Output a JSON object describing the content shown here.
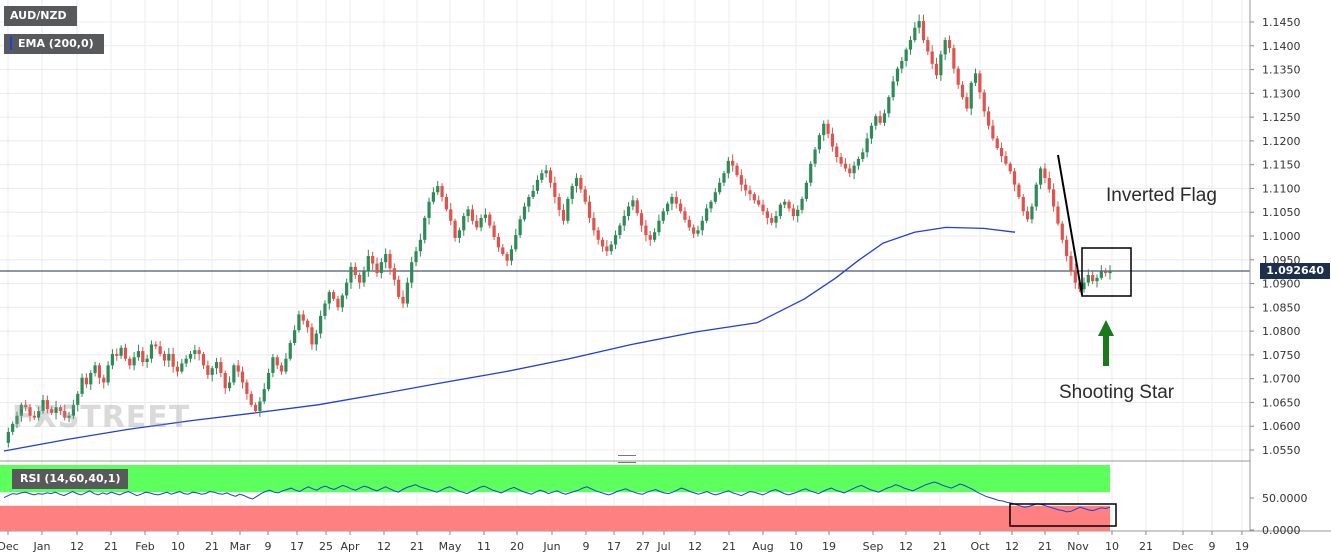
{
  "symbol_label": "AUD/NZD",
  "indicator_label": "EMA (200,0)",
  "rsi_label": "RSI (14,60,40,1)",
  "current_price_label": "1.092640",
  "watermark": "FXSTREET",
  "annotations": {
    "inverted_flag": "Inverted Flag",
    "shooting_star": "Shooting Star"
  },
  "colors": {
    "bull": "#2e8b57",
    "bear": "#e0524b",
    "ema": "#1f3fd6",
    "rsi_line": "#1f3fd6",
    "rsi_upper_zone": "#5dff5d",
    "rsi_lower_zone": "#ff8080",
    "price_line": "#1e2f4e",
    "arrow": "#1a7a1a",
    "ema_tag_bar": "#1f3fd6"
  },
  "chart_data": {
    "type": "candlestick",
    "title": "AUD/NZD",
    "y_ticks": [
      "1.1450",
      "1.1400",
      "1.1350",
      "1.1300",
      "1.1250",
      "1.1200",
      "1.1150",
      "1.1100",
      "1.1050",
      "1.1000",
      "1.0950",
      "1.0900",
      "1.0850",
      "1.0800",
      "1.0750",
      "1.0700",
      "1.0650",
      "1.0600",
      "1.0550"
    ],
    "ylim": [
      1.0545,
      1.1485
    ],
    "x_ticks": [
      "Dec",
      "Jan",
      "12",
      "21",
      "Feb",
      "10",
      "21",
      "Mar",
      "9",
      "17",
      "25",
      "Apr",
      "12",
      "21",
      "May",
      "11",
      "20",
      "Jun",
      "9",
      "17",
      "27",
      "Jul",
      "12",
      "21",
      "Aug",
      "10",
      "19",
      "Sep",
      "12",
      "21",
      "Oct",
      "12",
      "21",
      "Nov",
      "10",
      "21",
      "Dec",
      "9",
      "19"
    ],
    "current_price": 1.09264,
    "price_path": [
      1.0565,
      1.0588,
      1.0605,
      1.0622,
      1.0645,
      1.064,
      1.0622,
      1.0618,
      1.0632,
      1.0655,
      1.0636,
      1.0628,
      1.064,
      1.0632,
      1.0618,
      1.0622,
      1.0645,
      1.0668,
      1.0702,
      1.0688,
      1.0712,
      1.0728,
      1.0702,
      1.0692,
      1.0728,
      1.0752,
      1.0748,
      1.0765,
      1.0742,
      1.0728,
      1.0745,
      1.0758,
      1.0735,
      1.0742,
      1.0772,
      1.0768,
      1.0752,
      1.0738,
      1.0752,
      1.0725,
      1.0715,
      1.0732,
      1.0742,
      1.0752,
      1.076,
      1.0752,
      1.0728,
      1.0708,
      1.0722,
      1.0735,
      1.0712,
      1.068,
      1.0692,
      1.0728,
      1.0715,
      1.0692,
      1.0668,
      1.0645,
      1.0632,
      1.0652,
      1.0678,
      1.0712,
      1.0745,
      1.0728,
      1.0715,
      1.0742,
      1.0775,
      1.0802,
      1.0835,
      1.0822,
      1.0808,
      1.0772,
      1.0795,
      1.0832,
      1.0858,
      1.0882,
      1.0868,
      1.085,
      1.0875,
      1.0902,
      1.0935,
      1.0918,
      1.0902,
      1.0925,
      1.0958,
      1.0942,
      1.0922,
      1.0945,
      1.0962,
      1.0932,
      1.0908,
      1.0872,
      1.0858,
      1.0902,
      1.0945,
      1.0968,
      1.0992,
      1.1038,
      1.1072,
      1.1092,
      1.1105,
      1.1082,
      1.1056,
      1.1032,
      1.0996,
      1.1012,
      1.1042,
      1.1056,
      1.1032,
      1.1018,
      1.1038,
      1.1045,
      1.1022,
      1.0998,
      1.0976,
      1.0962,
      1.0948,
      1.0972,
      1.1002,
      1.1035,
      1.1062,
      1.1082,
      1.1095,
      1.1118,
      1.1132,
      1.1138,
      1.1112,
      1.1082,
      1.1055,
      1.1032,
      1.1078,
      1.1105,
      1.1122,
      1.1098,
      1.1072,
      1.1038,
      1.1012,
      1.0992,
      1.0978,
      1.0968,
      1.0982,
      1.1002,
      1.1022,
      1.1042,
      1.1062,
      1.1075,
      1.1048,
      1.1022,
      1.1002,
      1.0992,
      1.1008,
      1.1032,
      1.1052,
      1.1068,
      1.1082,
      1.1068,
      1.1052,
      1.1034,
      1.1018,
      1.1005,
      1.1012,
      1.1032,
      1.1058,
      1.1072,
      1.1092,
      1.1112,
      1.1132,
      1.1158,
      1.1148,
      1.1128,
      1.1108,
      1.1096,
      1.1088,
      1.1075,
      1.1066,
      1.1052,
      1.1038,
      1.1028,
      1.1042,
      1.1066,
      1.1072,
      1.1058,
      1.1042,
      1.1055,
      1.1078,
      1.1112,
      1.1152,
      1.1182,
      1.1212,
      1.1236,
      1.1215,
      1.1188,
      1.1166,
      1.1152,
      1.1142,
      1.1132,
      1.1148,
      1.1162,
      1.1176,
      1.1205,
      1.1232,
      1.1252,
      1.1238,
      1.1258,
      1.1292,
      1.1325,
      1.1352,
      1.1368,
      1.1392,
      1.1412,
      1.1438,
      1.1452,
      1.1412,
      1.1388,
      1.1362,
      1.1338,
      1.1382,
      1.1412,
      1.1395,
      1.1352,
      1.1318,
      1.1292,
      1.1268,
      1.1322,
      1.1342,
      1.1302,
      1.1262,
      1.1232,
      1.1205,
      1.1185,
      1.1168,
      1.1152,
      1.1136,
      1.1108,
      1.1082,
      1.1052,
      1.1035,
      1.1062,
      1.1108,
      1.1142,
      1.1122,
      1.1098,
      1.1062,
      1.1026,
      1.0992,
      1.0958,
      1.0928,
      1.0902,
      1.0888,
      1.0902,
      1.0918,
      1.0905,
      1.0912,
      1.0925,
      1.0922,
      1.09264
    ],
    "series": [
      {
        "name": "EMA (200,0)",
        "points": [
          [
            0,
            1.0548
          ],
          [
            20,
            1.0572
          ],
          [
            40,
            1.0594
          ],
          [
            60,
            1.0612
          ],
          [
            80,
            1.0628
          ],
          [
            100,
            1.0645
          ],
          [
            120,
            1.0668
          ],
          [
            140,
            1.0692
          ],
          [
            160,
            1.0715
          ],
          [
            180,
            1.0742
          ],
          [
            200,
            1.0772
          ],
          [
            220,
            1.0798
          ],
          [
            240,
            1.0818
          ],
          [
            255,
            1.0868
          ],
          [
            265,
            1.0912
          ],
          [
            272,
            1.0948
          ],
          [
            280,
            1.0985
          ],
          [
            290,
            1.1008
          ],
          [
            300,
            1.1018
          ],
          [
            312,
            1.1016
          ],
          [
            322,
            1.1008
          ]
        ]
      }
    ],
    "rsi": {
      "levels": [
        60,
        40
      ],
      "y_ticks": [
        "50.0000",
        "0.0000"
      ],
      "values": [
        52,
        55,
        58,
        57,
        59,
        60,
        58,
        56,
        58,
        57,
        59,
        58,
        60,
        57,
        55,
        58,
        61,
        58,
        56,
        59,
        62,
        58,
        56,
        59,
        57,
        60,
        58,
        56,
        59,
        61,
        58,
        55,
        57,
        60,
        59,
        57,
        56,
        58,
        60,
        57,
        59,
        61,
        58,
        57,
        60,
        59,
        57,
        58,
        61,
        60,
        58,
        57,
        59,
        56,
        54,
        57,
        55,
        52,
        50,
        54,
        58,
        61,
        63,
        60,
        59,
        62,
        64,
        66,
        63,
        61,
        65,
        68,
        65,
        63,
        67,
        69,
        66,
        64,
        67,
        70,
        68,
        65,
        63,
        66,
        69,
        67,
        64,
        62,
        65,
        68,
        65,
        62,
        60,
        64,
        67,
        69,
        71,
        68,
        66,
        64,
        62,
        60,
        63,
        66,
        68,
        65,
        62,
        60,
        58,
        61,
        64,
        67,
        69,
        66,
        63,
        61,
        59,
        62,
        65,
        67,
        64,
        61,
        59,
        57,
        60,
        63,
        61,
        58,
        60,
        62,
        59,
        57,
        59,
        61,
        63,
        66,
        68,
        65,
        62,
        60,
        58,
        56,
        58,
        61,
        63,
        65,
        62,
        60,
        58,
        57,
        60,
        62,
        64,
        61,
        59,
        58,
        60,
        63,
        66,
        64,
        61,
        59,
        57,
        59,
        61,
        58,
        56,
        58,
        60,
        62,
        59,
        57,
        55,
        58,
        61,
        60,
        58,
        56,
        59,
        62,
        64,
        61,
        58,
        56,
        58,
        60,
        63,
        65,
        62,
        60,
        58,
        61,
        64,
        66,
        63,
        61,
        59,
        62,
        65,
        68,
        70,
        67,
        64,
        62,
        60,
        63,
        66,
        68,
        71,
        69,
        66,
        64,
        62,
        65,
        68,
        71,
        73,
        75,
        73,
        70,
        68,
        66,
        69,
        72,
        70,
        67,
        64,
        60,
        57,
        54,
        52,
        50,
        48,
        47,
        45,
        44,
        42,
        40,
        38,
        39,
        41,
        43,
        42,
        40,
        38,
        36,
        34,
        33,
        31,
        32,
        35,
        38,
        36,
        34,
        33,
        35,
        37,
        36,
        38
      ]
    }
  }
}
